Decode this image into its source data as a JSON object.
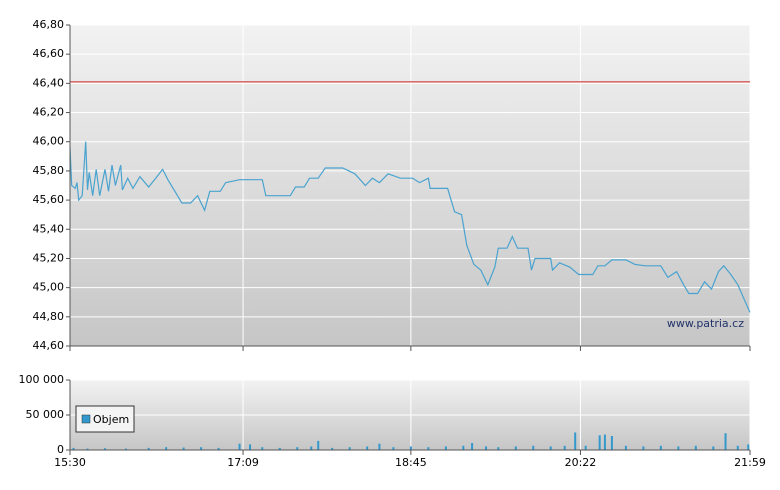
{
  "chart_data": [
    {
      "type": "line",
      "color": "#4aa3cf",
      "x": [
        930,
        931,
        933,
        934,
        935,
        937,
        939,
        940,
        941,
        943,
        945,
        947,
        950,
        952,
        954,
        956,
        959,
        960,
        963,
        966,
        970,
        975,
        979,
        983,
        986,
        990,
        994,
        999,
        1003,
        1007,
        1010,
        1016,
        1019,
        1027,
        1040,
        1042,
        1056,
        1059,
        1064,
        1067,
        1072,
        1076,
        1086,
        1093,
        1099,
        1103,
        1107,
        1112,
        1119,
        1126,
        1130,
        1135,
        1136,
        1146,
        1150,
        1154,
        1157,
        1161,
        1165,
        1169,
        1173,
        1175,
        1180,
        1183,
        1186,
        1192,
        1194,
        1196,
        1205,
        1206,
        1210,
        1216,
        1221,
        1229,
        1232,
        1236,
        1240,
        1248,
        1253,
        1259,
        1268,
        1272,
        1277,
        1281,
        1284,
        1289,
        1293,
        1297,
        1301,
        1304,
        1308,
        1312,
        1316,
        1319
      ],
      "values": [
        45.96,
        45.7,
        45.68,
        45.72,
        45.6,
        45.63,
        46.0,
        45.67,
        45.79,
        45.63,
        45.81,
        45.63,
        45.81,
        45.66,
        45.84,
        45.7,
        45.84,
        45.67,
        45.75,
        45.68,
        45.76,
        45.69,
        45.75,
        45.81,
        45.74,
        45.66,
        45.58,
        45.58,
        45.63,
        45.53,
        45.66,
        45.66,
        45.72,
        45.74,
        45.74,
        45.63,
        45.63,
        45.69,
        45.69,
        45.75,
        45.75,
        45.82,
        45.82,
        45.78,
        45.7,
        45.75,
        45.72,
        45.78,
        45.75,
        45.75,
        45.72,
        45.75,
        45.68,
        45.68,
        45.52,
        45.5,
        45.29,
        45.16,
        45.12,
        45.02,
        45.14,
        45.27,
        45.27,
        45.35,
        45.27,
        45.27,
        45.12,
        45.2,
        45.2,
        45.12,
        45.17,
        45.14,
        45.09,
        45.09,
        45.15,
        45.15,
        45.19,
        45.19,
        45.16,
        45.15,
        45.15,
        45.07,
        45.11,
        45.02,
        44.96,
        44.96,
        45.04,
        44.99,
        45.11,
        45.15,
        45.09,
        45.02,
        44.91,
        44.83
      ],
      "reference_line": {
        "value": 46.41,
        "color": "#cc2222"
      },
      "xlim": [
        930,
        1319
      ],
      "ylim": [
        44.6,
        46.8
      ],
      "yticks": [
        {
          "value": 44.6,
          "label": "44,60"
        },
        {
          "value": 44.8,
          "label": "44,80"
        },
        {
          "value": 45.0,
          "label": "45,00"
        },
        {
          "value": 45.2,
          "label": "45,20"
        },
        {
          "value": 45.4,
          "label": "45,40"
        },
        {
          "value": 45.6,
          "label": "45,60"
        },
        {
          "value": 45.8,
          "label": "45,80"
        },
        {
          "value": 46.0,
          "label": "46,00"
        },
        {
          "value": 46.2,
          "label": "46,20"
        },
        {
          "value": 46.4,
          "label": "46,40"
        },
        {
          "value": 46.6,
          "label": "46,60"
        },
        {
          "value": 46.8,
          "label": "46,80"
        }
      ],
      "annotation": "www.patria.cz",
      "grid": true
    },
    {
      "type": "bar",
      "x": [
        932,
        940,
        950,
        962,
        975,
        985,
        995,
        1005,
        1015,
        1027,
        1033,
        1040,
        1050,
        1060,
        1068,
        1072,
        1080,
        1090,
        1100,
        1107,
        1115,
        1125,
        1135,
        1145,
        1155,
        1160,
        1168,
        1175,
        1185,
        1195,
        1205,
        1213,
        1219,
        1225,
        1233,
        1236,
        1240,
        1248,
        1258,
        1268,
        1278,
        1288,
        1298,
        1305,
        1312,
        1318
      ],
      "series": [
        {
          "name": "Objem",
          "color": "#3399cc",
          "values": [
            3000,
            2000,
            2500,
            2000,
            3000,
            4000,
            3500,
            4000,
            3000,
            9000,
            8000,
            4000,
            3000,
            4000,
            5000,
            13000,
            3000,
            4000,
            5000,
            9000,
            4000,
            5000,
            4000,
            5000,
            6000,
            10000,
            5000,
            4000,
            5000,
            6000,
            5000,
            6000,
            25000,
            6000,
            21000,
            22000,
            20000,
            6000,
            5000,
            6000,
            5000,
            6000,
            5000,
            24000,
            6000,
            8000
          ]
        }
      ],
      "xlim": [
        930,
        1319
      ],
      "xticks": [
        {
          "value": 930,
          "label": "15:30"
        },
        {
          "value": 1029,
          "label": "17:09"
        },
        {
          "value": 1125,
          "label": "18:45"
        },
        {
          "value": 1222,
          "label": "20:22"
        },
        {
          "value": 1319,
          "label": "21:59"
        }
      ],
      "ylim": [
        0,
        100000
      ],
      "yticks": [
        0,
        {
          "value": 50000,
          "label": "50 000"
        },
        {
          "value": 100000,
          "label": "100 000"
        }
      ],
      "legend": "upper left",
      "grid": true
    }
  ]
}
